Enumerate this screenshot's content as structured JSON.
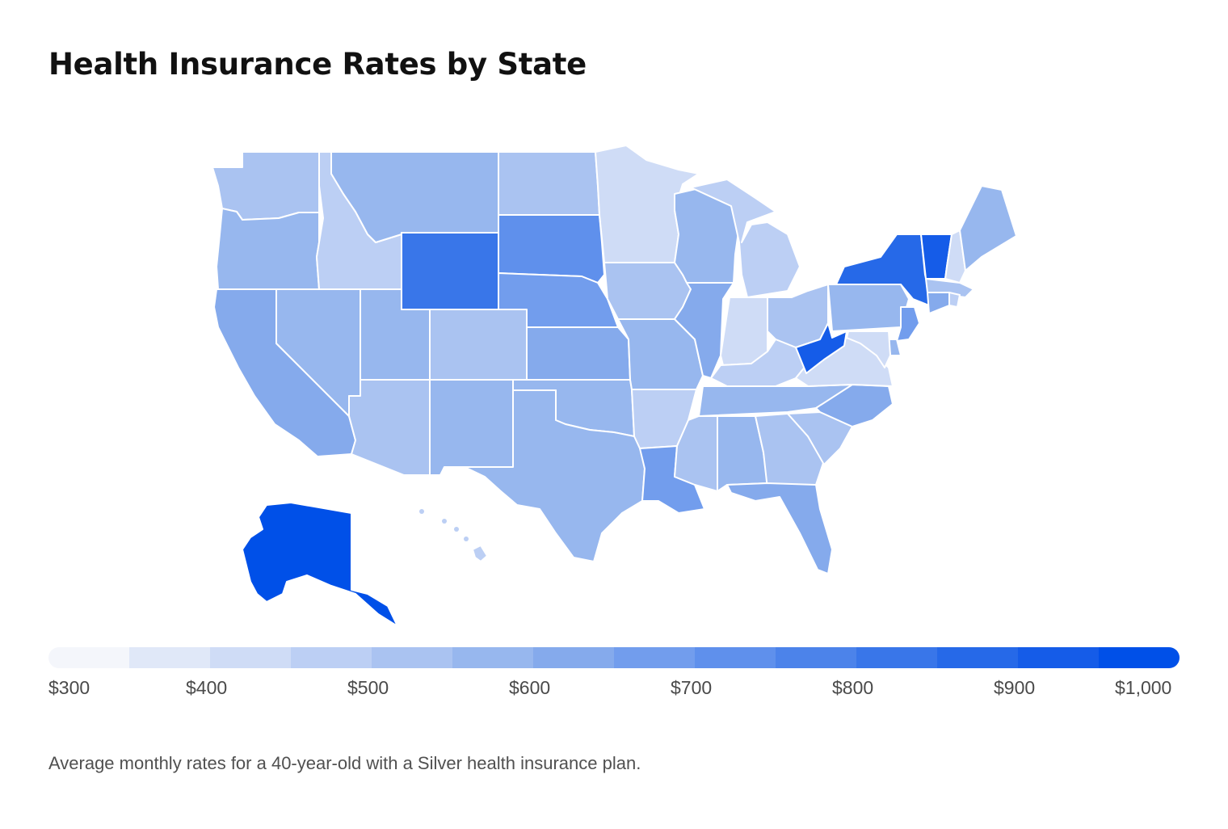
{
  "title": "Health Insurance Rates by State",
  "caption": "Average monthly rates for a 40-year-old with a Silver health insurance plan.",
  "legend": {
    "ticks": [
      "$300",
      "$400",
      "$500",
      "$600",
      "$700",
      "$800",
      "$900",
      "$1,000"
    ],
    "min": 300,
    "max": 1000,
    "colors": [
      "#f4f6fb",
      "#e0e8f8",
      "#cfdcf6",
      "#bccff4",
      "#aac3f1",
      "#97b7ee",
      "#85aaec",
      "#729ded",
      "#5f90ec",
      "#4c83ea",
      "#3976e9",
      "#2669e8",
      "#155ce8",
      "#0050e8"
    ]
  },
  "chart_data": {
    "type": "choropleth",
    "title": "Health Insurance Rates by State",
    "unit": "average monthly rate (USD)",
    "regions": [
      {
        "name": "Washington",
        "value": 540
      },
      {
        "name": "Oregon",
        "value": 580
      },
      {
        "name": "California",
        "value": 620
      },
      {
        "name": "Nevada",
        "value": 580
      },
      {
        "name": "Idaho",
        "value": 480
      },
      {
        "name": "Montana",
        "value": 580
      },
      {
        "name": "Wyoming",
        "value": 820
      },
      {
        "name": "Utah",
        "value": 580
      },
      {
        "name": "Arizona",
        "value": 540
      },
      {
        "name": "Colorado",
        "value": 540
      },
      {
        "name": "New Mexico",
        "value": 580
      },
      {
        "name": "North Dakota",
        "value": 540
      },
      {
        "name": "South Dakota",
        "value": 710
      },
      {
        "name": "Nebraska",
        "value": 670
      },
      {
        "name": "Kansas",
        "value": 620
      },
      {
        "name": "Oklahoma",
        "value": 580
      },
      {
        "name": "Texas",
        "value": 580
      },
      {
        "name": "Minnesota",
        "value": 420
      },
      {
        "name": "Iowa",
        "value": 540
      },
      {
        "name": "Missouri",
        "value": 580
      },
      {
        "name": "Arkansas",
        "value": 480
      },
      {
        "name": "Louisiana",
        "value": 670
      },
      {
        "name": "Wisconsin",
        "value": 580
      },
      {
        "name": "Illinois",
        "value": 620
      },
      {
        "name": "Michigan",
        "value": 490
      },
      {
        "name": "Indiana",
        "value": 410
      },
      {
        "name": "Ohio",
        "value": 530
      },
      {
        "name": "Kentucky",
        "value": 490
      },
      {
        "name": "Tennessee",
        "value": 560
      },
      {
        "name": "Mississippi",
        "value": 530
      },
      {
        "name": "Alabama",
        "value": 570
      },
      {
        "name": "Georgia",
        "value": 520
      },
      {
        "name": "Florida",
        "value": 630
      },
      {
        "name": "South Carolina",
        "value": 540
      },
      {
        "name": "North Carolina",
        "value": 620
      },
      {
        "name": "Virginia",
        "value": 420
      },
      {
        "name": "West Virginia",
        "value": 930
      },
      {
        "name": "Pennsylvania",
        "value": 560
      },
      {
        "name": "New York",
        "value": 880
      },
      {
        "name": "Vermont",
        "value": 920
      },
      {
        "name": "New Hampshire",
        "value": 420
      },
      {
        "name": "Maine",
        "value": 580
      },
      {
        "name": "Massachusetts",
        "value": 540
      },
      {
        "name": "Connecticut",
        "value": 620
      },
      {
        "name": "Rhode Island",
        "value": 470
      },
      {
        "name": "New Jersey",
        "value": 660
      },
      {
        "name": "Delaware",
        "value": 580
      },
      {
        "name": "Maryland",
        "value": 400
      },
      {
        "name": "Alaska",
        "value": 960
      },
      {
        "name": "Hawaii",
        "value": 480
      }
    ]
  }
}
